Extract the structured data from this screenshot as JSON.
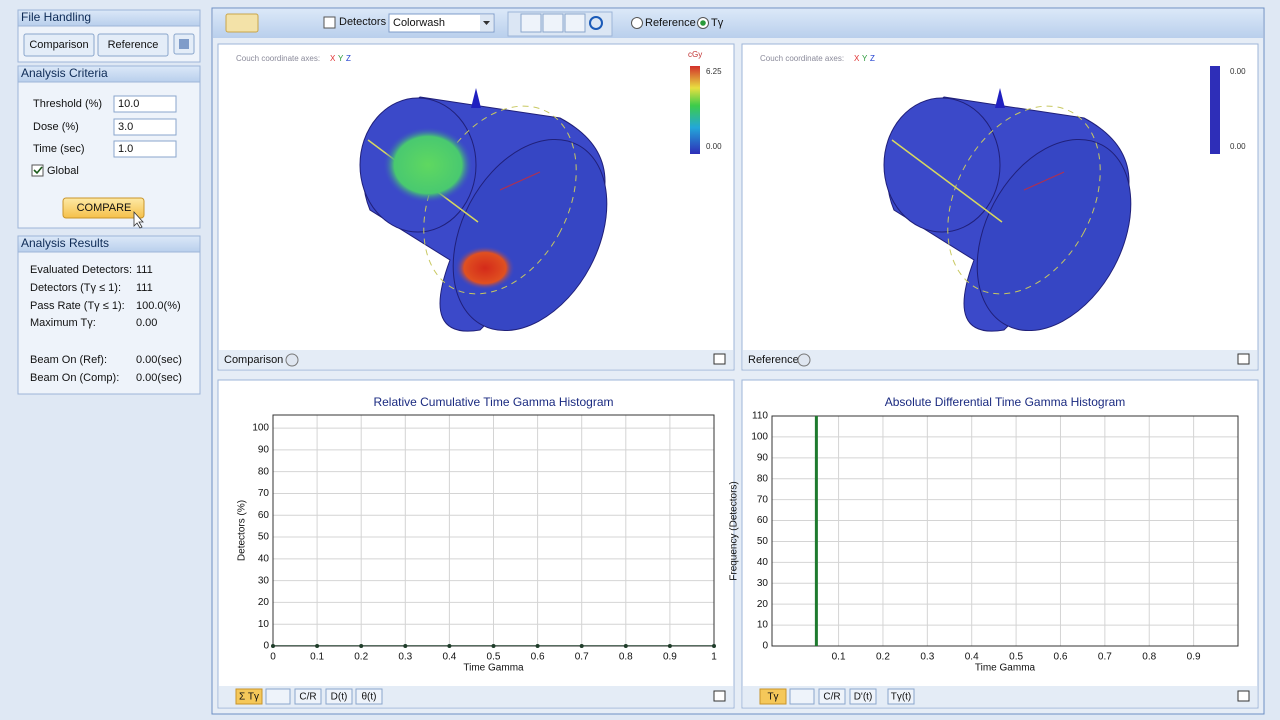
{
  "file_handling": {
    "title": "File Handling",
    "buttons": [
      "Comparison",
      "Reference"
    ]
  },
  "analysis_criteria": {
    "title": "Analysis Criteria",
    "fields": [
      {
        "label": "Threshold (%)",
        "value": "10.0"
      },
      {
        "label": "Dose (%)",
        "value": "3.0"
      },
      {
        "label": "Time (sec)",
        "value": "1.0"
      }
    ],
    "global": "Global",
    "compare": "COMPARE"
  },
  "analysis_results": {
    "title": "Analysis Results",
    "rows": [
      {
        "label": "Evaluated Detectors:",
        "value": "111"
      },
      {
        "label": "Detectors (Tγ ≤ 1):",
        "value": "111"
      },
      {
        "label": "Pass Rate (Tγ ≤ 1):",
        "value": "100.0(%)"
      },
      {
        "label": "Maximum Tγ:",
        "value": "0.00"
      },
      {
        "label": "Beam On (Ref):",
        "value": "0.00(sec)"
      },
      {
        "label": "Beam On (Comp):",
        "value": "0.00(sec)"
      }
    ]
  },
  "toolbar": {
    "detectors": "Detectors",
    "colormap": "Colorwash",
    "reference": "Reference",
    "gamma": "Tγ"
  },
  "views": [
    {
      "axes_label": "Couch coordinate axes:",
      "axes": [
        "X",
        "Y",
        "Z"
      ],
      "unit": "cGy",
      "scale_max": "6.25",
      "scale_min": "0.00",
      "footer": "Comparison"
    },
    {
      "axes_label": "Couch coordinate axes:",
      "axes": [
        "X",
        "Y",
        "Z"
      ],
      "scale_max": "0.00",
      "scale_min": "0.00",
      "footer": "Reference"
    }
  ],
  "bottom_tabs": [
    [
      "Σ Tγ",
      "C/R",
      "D(t)",
      "θ(t)"
    ],
    [
      "Tγ",
      "C/R",
      "D'(t)",
      "Tγ(t)"
    ]
  ],
  "chart_data": [
    {
      "type": "line",
      "title": "Relative Cumulative Time Gamma Histogram",
      "x_label": "Time Gamma",
      "y_label": "Detectors (%)",
      "x": [
        0,
        0.1,
        0.2,
        0.3,
        0.4,
        0.5,
        0.6,
        0.7,
        0.8,
        0.9,
        1
      ],
      "values": [
        0,
        0,
        0,
        0,
        0,
        0,
        0,
        0,
        0,
        0,
        0
      ],
      "color": "#1f3d2a",
      "xlim": [
        0,
        1
      ],
      "xticks": [
        0,
        0.1,
        0.2,
        0.3,
        0.4,
        0.5,
        0.6,
        0.7,
        0.8,
        0.9,
        1
      ],
      "ylim": [
        0,
        106
      ],
      "yticks": [
        0,
        10,
        20,
        30,
        40,
        50,
        60,
        70,
        80,
        90,
        100
      ],
      "grid": true
    },
    {
      "type": "bar",
      "title": "Absolute Differential Time Gamma Histogram",
      "x_label": "Time Gamma",
      "y_label": "Frequency (Detectors)",
      "x": [
        0.05
      ],
      "values": [
        111
      ],
      "color": "#1e7a2e",
      "xlim": [
        -0.05,
        1
      ],
      "xticks": [
        0.1,
        0.2,
        0.3,
        0.4,
        0.5,
        0.6,
        0.7,
        0.8,
        0.9
      ],
      "ylim": [
        0,
        110
      ],
      "yticks": [
        0,
        10,
        20,
        30,
        40,
        50,
        60,
        70,
        80,
        90,
        100,
        110
      ],
      "grid": true
    }
  ]
}
